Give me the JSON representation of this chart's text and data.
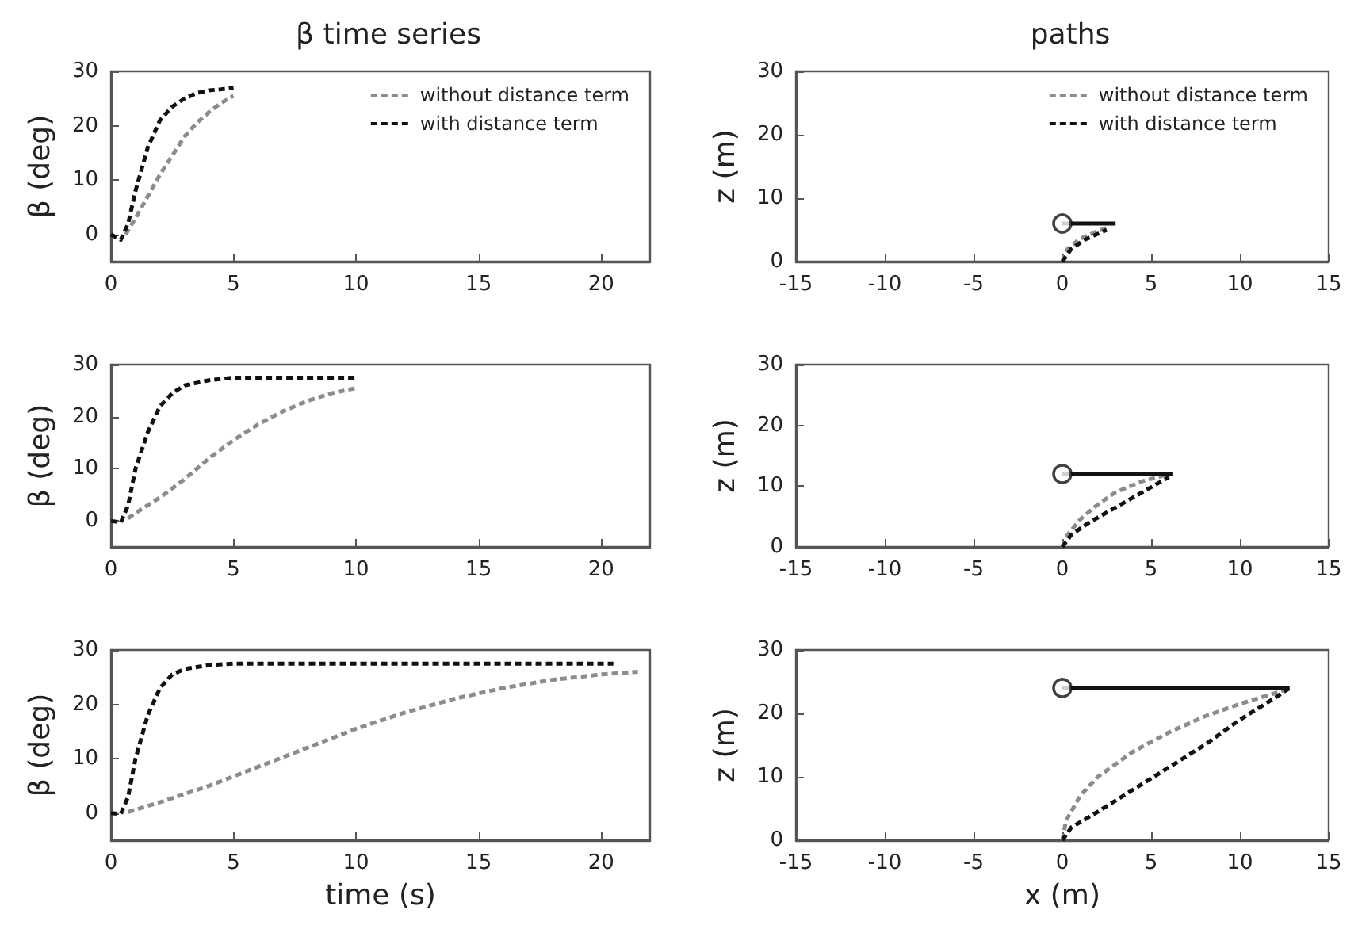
{
  "chart_data": [
    {
      "type": "line",
      "title": "β time series",
      "ylabel": "β (deg)",
      "xlim": [
        0,
        22
      ],
      "xticks": [
        0,
        5,
        10,
        15,
        20
      ],
      "ylim": [
        -5,
        30
      ],
      "yticks": [
        0,
        10,
        20,
        30
      ],
      "grid": false,
      "legend": "top right",
      "marker": "none",
      "line_style": "dashed",
      "series": [
        {
          "name": "without distance term",
          "color": "#8c8c8c",
          "x": [
            0.6,
            1,
            1.5,
            2,
            2.5,
            3,
            3.5,
            4,
            4.5,
            5
          ],
          "values": [
            0,
            3,
            7,
            11,
            14.5,
            18,
            20.5,
            22.5,
            24.2,
            25.5
          ]
        },
        {
          "name": "with distance term",
          "color": "#111111",
          "x": [
            0,
            0.4,
            0.7,
            1,
            1.5,
            2,
            2.5,
            3,
            3.5,
            4,
            4.5,
            5
          ],
          "values": [
            0,
            -1,
            2,
            8,
            16,
            21,
            23.5,
            25,
            26,
            26.5,
            26.7,
            27
          ]
        }
      ]
    },
    {
      "type": "line",
      "title": "paths",
      "ylabel": "z (m)",
      "xlim": [
        -15,
        15
      ],
      "xticks": [
        -15,
        -10,
        -5,
        0,
        5,
        10,
        15
      ],
      "ylim": [
        0,
        30
      ],
      "yticks": [
        0,
        10,
        20,
        30
      ],
      "grid": false,
      "legend": "top right",
      "marker": "none",
      "line_style": "dashed",
      "series": [
        {
          "name": "without distance term",
          "color": "#8c8c8c",
          "x": [
            0,
            0.3,
            1,
            2,
            2.5
          ],
          "values": [
            0,
            2,
            3.6,
            4.8,
            5.3
          ]
        },
        {
          "name": "with distance term",
          "color": "#111111",
          "x": [
            0,
            0.5,
            1.3,
            2.5
          ],
          "values": [
            0,
            2,
            3.5,
            5
          ]
        },
        {
          "color": "#111111",
          "line_style": "solid",
          "x": [
            0,
            3
          ],
          "values": [
            6,
            6
          ]
        },
        {
          "type": "scatter",
          "marker": "circle",
          "color": "#111111",
          "x": [
            0
          ],
          "values": [
            6
          ]
        }
      ]
    },
    {
      "type": "line",
      "ylabel": "β (deg)",
      "xlim": [
        0,
        22
      ],
      "xticks": [
        0,
        5,
        10,
        15,
        20
      ],
      "ylim": [
        -5,
        30
      ],
      "yticks": [
        0,
        10,
        20,
        30
      ],
      "grid": false,
      "marker": "none",
      "line_style": "dashed",
      "series": [
        {
          "color": "#8c8c8c",
          "x": [
            0.7,
            1,
            2,
            3,
            4,
            5,
            6,
            7,
            8,
            9,
            10
          ],
          "values": [
            0.5,
            1.5,
            4.5,
            8,
            12,
            15.5,
            18.5,
            21,
            23,
            24.5,
            25.5
          ]
        },
        {
          "color": "#111111",
          "x": [
            0,
            0.4,
            0.7,
            1,
            1.5,
            2,
            2.5,
            3,
            4,
            5,
            7,
            10
          ],
          "values": [
            0,
            -0.3,
            3,
            10,
            17,
            22,
            24.5,
            26,
            27,
            27.5,
            27.5,
            27.5
          ]
        }
      ]
    },
    {
      "type": "line",
      "ylabel": "z (m)",
      "xlim": [
        -15,
        15
      ],
      "xticks": [
        -15,
        -10,
        -5,
        0,
        5,
        10,
        15
      ],
      "ylim": [
        0,
        30
      ],
      "yticks": [
        0,
        10,
        20,
        30
      ],
      "grid": false,
      "marker": "none",
      "line_style": "dashed",
      "series": [
        {
          "color": "#8c8c8c",
          "x": [
            0,
            0.3,
            1,
            2,
            3,
            4.5,
            6
          ],
          "values": [
            0,
            2,
            4.5,
            7,
            9,
            10.8,
            12
          ]
        },
        {
          "color": "#111111",
          "x": [
            0,
            0.5,
            1.5,
            3,
            4.5,
            6
          ],
          "values": [
            0,
            2,
            4,
            6.5,
            9,
            11.5
          ]
        },
        {
          "color": "#111111",
          "line_style": "solid",
          "x": [
            0,
            6.2
          ],
          "values": [
            12,
            12
          ]
        },
        {
          "type": "scatter",
          "marker": "circle",
          "color": "#111111",
          "x": [
            0
          ],
          "values": [
            12
          ]
        }
      ]
    },
    {
      "type": "line",
      "xlabel": "time (s)",
      "ylabel": "β (deg)",
      "xlim": [
        0,
        22
      ],
      "xticks": [
        0,
        5,
        10,
        15,
        20
      ],
      "ylim": [
        -5,
        30
      ],
      "yticks": [
        0,
        10,
        20,
        30
      ],
      "grid": false,
      "marker": "none",
      "line_style": "dashed",
      "series": [
        {
          "color": "#8c8c8c",
          "x": [
            0.7,
            2,
            4,
            6,
            8,
            10,
            12,
            14,
            16,
            18,
            20,
            21.5
          ],
          "values": [
            0.2,
            2,
            5,
            8.5,
            12,
            15.5,
            18.5,
            21,
            23,
            24.5,
            25.5,
            26
          ]
        },
        {
          "color": "#111111",
          "x": [
            0,
            0.4,
            0.7,
            1,
            1.5,
            2,
            2.5,
            3,
            4,
            5,
            10,
            20.5
          ],
          "values": [
            0,
            -0.2,
            3,
            10,
            18,
            23,
            25.5,
            26.5,
            27.2,
            27.5,
            27.5,
            27.5
          ]
        }
      ]
    },
    {
      "type": "line",
      "xlabel": "x (m)",
      "ylabel": "z (m)",
      "xlim": [
        -15,
        15
      ],
      "xticks": [
        -15,
        -10,
        -5,
        0,
        5,
        10,
        15
      ],
      "ylim": [
        0,
        30
      ],
      "yticks": [
        0,
        10,
        20,
        30
      ],
      "grid": false,
      "marker": "none",
      "line_style": "dashed",
      "series": [
        {
          "color": "#8c8c8c",
          "x": [
            0,
            0.2,
            1,
            2,
            4,
            6,
            8,
            10,
            12,
            12.8
          ],
          "values": [
            0,
            3,
            7,
            10,
            14,
            17,
            19.5,
            21.5,
            23.2,
            24
          ]
        },
        {
          "color": "#111111",
          "x": [
            0,
            0.5,
            2,
            4,
            6,
            8,
            10,
            12,
            12.8
          ],
          "values": [
            0,
            2,
            4.5,
            8,
            11.5,
            15,
            19,
            22.5,
            24
          ]
        },
        {
          "color": "#111111",
          "line_style": "solid",
          "x": [
            0,
            12.8
          ],
          "values": [
            24,
            24
          ]
        },
        {
          "type": "scatter",
          "marker": "circle",
          "color": "#111111",
          "x": [
            0
          ],
          "values": [
            24
          ]
        }
      ]
    }
  ]
}
